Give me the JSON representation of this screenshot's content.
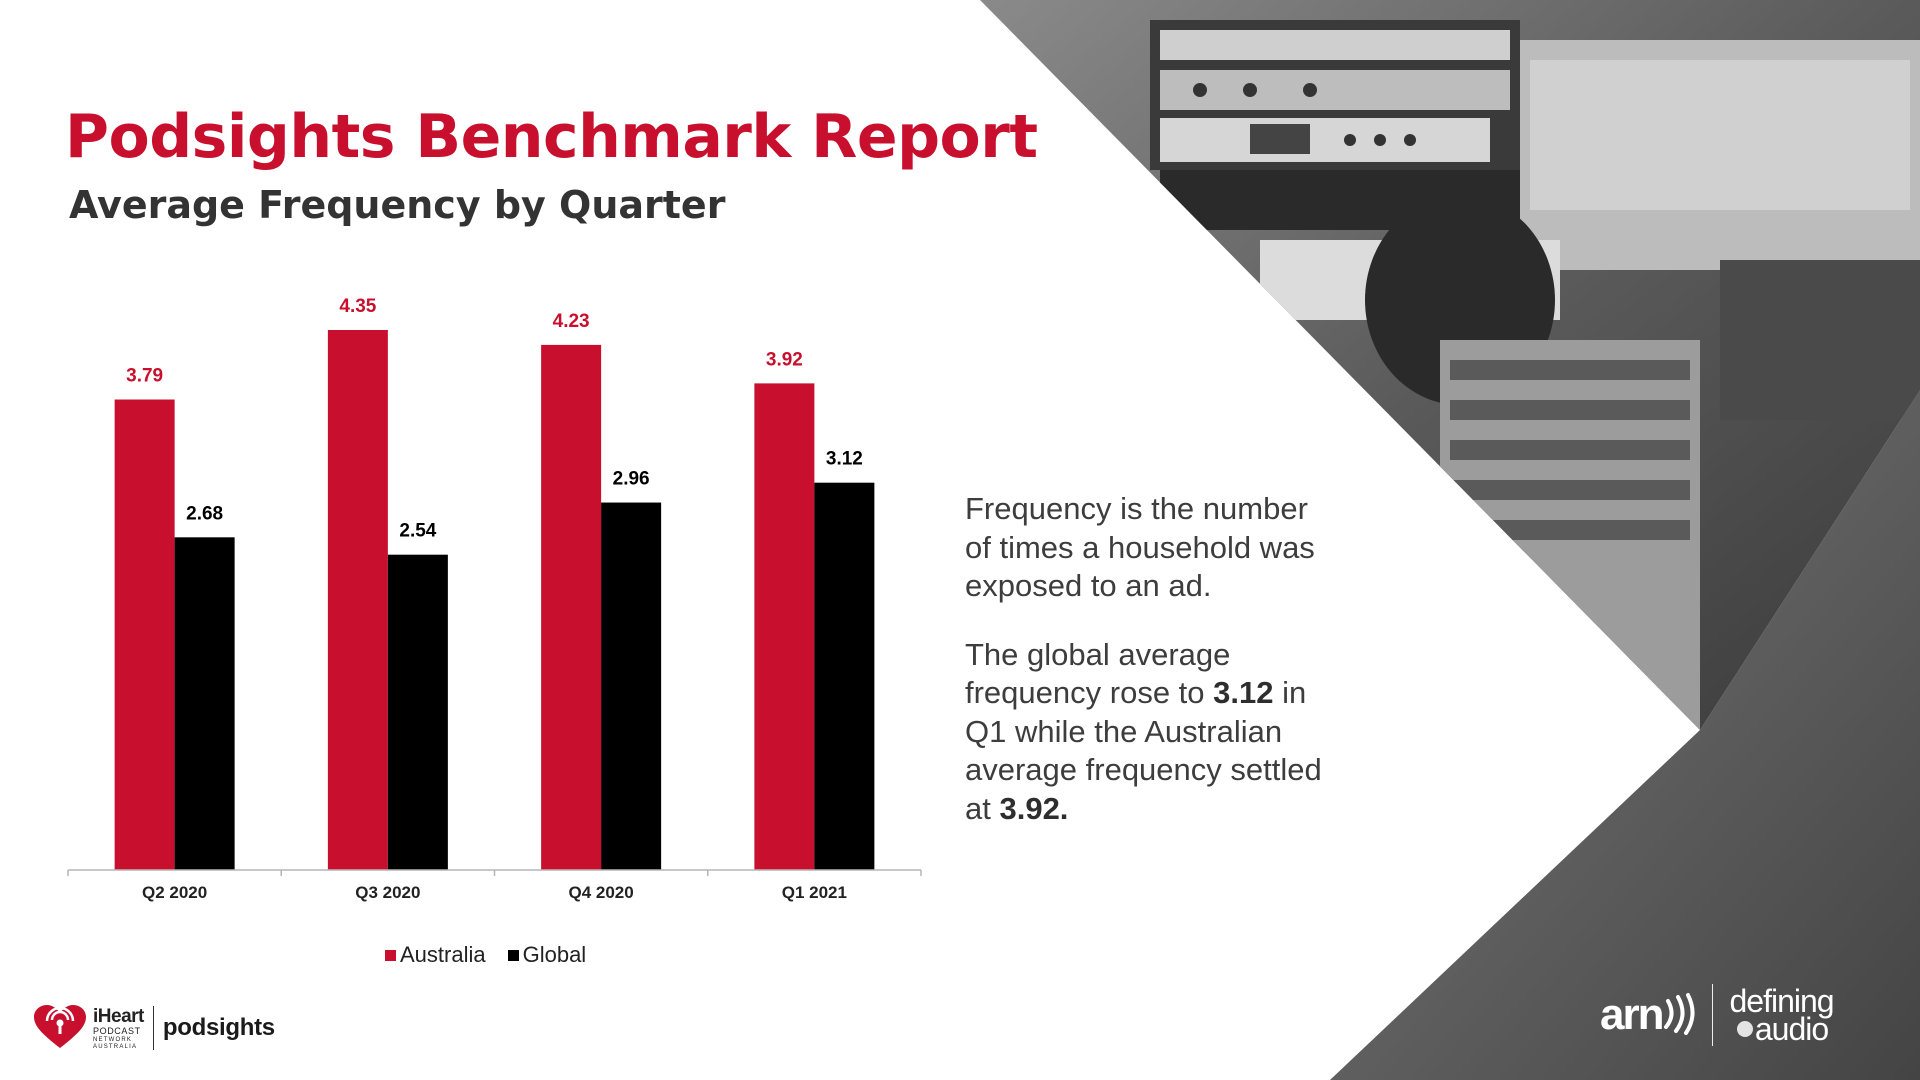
{
  "title": "Podsights Benchmark Report",
  "subtitle": "Average Frequency by Quarter",
  "colors": {
    "accent": "#c8102e",
    "australia": "#c8102e",
    "global": "#000000",
    "body_text": "#3d3d3d"
  },
  "chart_data": {
    "type": "bar",
    "title": "Average Frequency by Quarter",
    "xlabel": "",
    "ylabel": "",
    "ylim": [
      0,
      5.8
    ],
    "grid": false,
    "legend_position": "bottom",
    "categories": [
      "Q2 2020",
      "Q3 2020",
      "Q4 2020",
      "Q1 2021"
    ],
    "series": [
      {
        "name": "Australia",
        "color": "#c8102e",
        "values": [
          3.79,
          4.35,
          4.23,
          3.92
        ],
        "labels": [
          "3.79",
          "4.35",
          "4.23",
          "3.92"
        ]
      },
      {
        "name": "Global",
        "color": "#000000",
        "values": [
          2.68,
          2.54,
          2.96,
          3.12
        ],
        "labels": [
          "2.68",
          "2.54",
          "2.96",
          "3.12"
        ]
      }
    ]
  },
  "body": {
    "para1": "Frequency is the number of times a household was exposed to an ad.",
    "para2_a": "The global average frequency rose to ",
    "para2_b": "3.12",
    "para2_c": " in Q1 while the Australian average frequency settled at ",
    "para2_d": "3.92."
  },
  "footer": {
    "iheart_brand": "iHeart",
    "iheart_sub": "PODCAST",
    "iheart_sub2": "NETWORK",
    "iheart_sub3": "AUSTRALIA",
    "podsights": "podsights",
    "arn": "arn",
    "defining": "defining",
    "audio": "audio"
  },
  "icons": {
    "iheart": "iheart-logo-icon",
    "arn": "arn-waves-icon",
    "audio": "audio-bubble-icon"
  }
}
